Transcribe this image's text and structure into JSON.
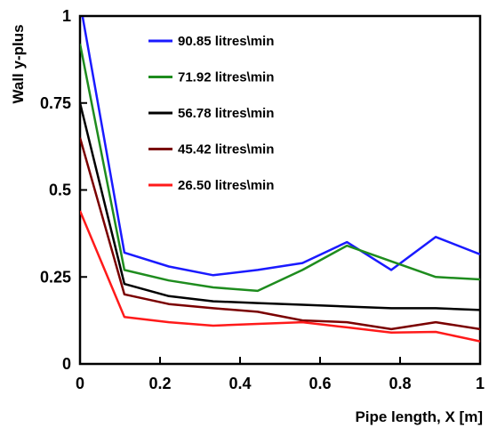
{
  "chart_data": {
    "type": "line",
    "xlabel": "Pipe length, X [m]",
    "ylabel": "Wall y-plus",
    "xlim": [
      0,
      1
    ],
    "ylim": [
      0,
      1
    ],
    "xticks": [
      "0",
      "0.2",
      "0.4",
      "0.6",
      "0.8",
      "1"
    ],
    "yticks": [
      "0",
      "0.25",
      "0.5",
      "0.75",
      "1"
    ],
    "grid": false,
    "legend_position": "top-center",
    "series": [
      {
        "name": "90.85 litres\\min",
        "color": "#1a1aff",
        "x": [
          0,
          0.111,
          0.222,
          0.333,
          0.444,
          0.556,
          0.667,
          0.778,
          0.889,
          1.0
        ],
        "y": [
          1.04,
          0.32,
          0.28,
          0.255,
          0.27,
          0.29,
          0.35,
          0.27,
          0.365,
          0.315
        ]
      },
      {
        "name": "71.92 litres\\min",
        "color": "#1e8c1e",
        "x": [
          0,
          0.111,
          0.222,
          0.333,
          0.444,
          0.556,
          0.667,
          0.778,
          0.889,
          1.0
        ],
        "y": [
          0.92,
          0.27,
          0.24,
          0.22,
          0.21,
          0.27,
          0.34,
          0.295,
          0.25,
          0.243
        ]
      },
      {
        "name": "56.78 litres\\min",
        "color": "#000000",
        "x": [
          0,
          0.111,
          0.222,
          0.333,
          0.444,
          0.556,
          0.667,
          0.778,
          0.889,
          1.0
        ],
        "y": [
          0.75,
          0.23,
          0.195,
          0.18,
          0.175,
          0.17,
          0.165,
          0.16,
          0.16,
          0.155
        ]
      },
      {
        "name": "45.42 litres\\min",
        "color": "#7a0000",
        "x": [
          0,
          0.111,
          0.222,
          0.333,
          0.444,
          0.556,
          0.667,
          0.778,
          0.889,
          1.0
        ],
        "y": [
          0.65,
          0.2,
          0.172,
          0.16,
          0.15,
          0.125,
          0.12,
          0.1,
          0.12,
          0.1
        ]
      },
      {
        "name": "26.50 litres\\min",
        "color": "#ff1a1a",
        "x": [
          0,
          0.111,
          0.222,
          0.333,
          0.444,
          0.556,
          0.667,
          0.778,
          0.889,
          1.0
        ],
        "y": [
          0.44,
          0.135,
          0.12,
          0.11,
          0.115,
          0.12,
          0.105,
          0.09,
          0.092,
          0.065
        ]
      }
    ]
  }
}
